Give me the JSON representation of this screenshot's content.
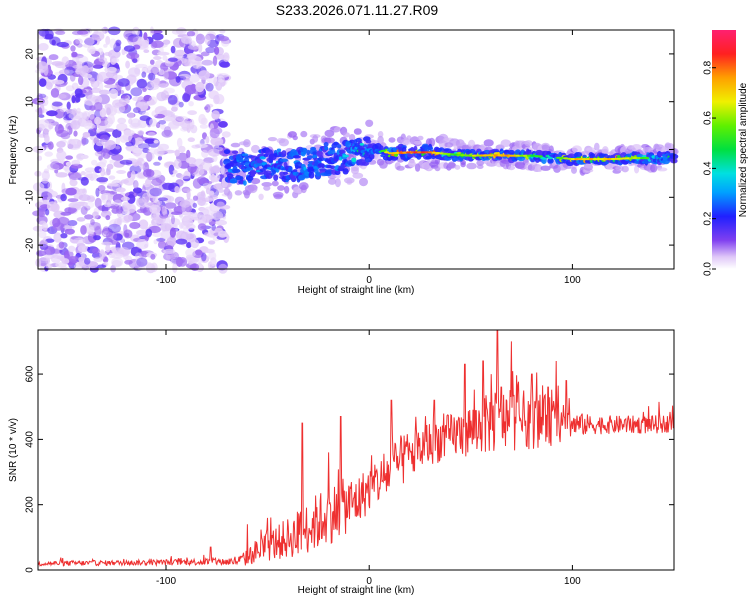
{
  "page": {
    "title": "S233.2026.071.11.27.R09"
  },
  "colors": {
    "snr_line": "#ee3030",
    "axis": "#000000",
    "background": "#ffffff"
  },
  "chart_data": [
    {
      "type": "heatmap",
      "name": "spectrogram",
      "title": "S233.2026.071.11.27.R09",
      "xlabel": "Height of straight line (km)",
      "ylabel": "Frequency (Hz)",
      "xlim": [
        -163,
        150
      ],
      "ylim": [
        -25,
        25
      ],
      "xticks": [
        -100,
        0,
        100
      ],
      "xtick_labels": [
        "-100",
        "0",
        "100"
      ],
      "yticks": [
        -20,
        -10,
        0,
        10,
        20
      ],
      "ytick_labels": [
        "-20",
        "-10",
        "0",
        "10",
        "20"
      ],
      "noise_region_x": [
        -163,
        -70
      ],
      "signal_trace": {
        "x": [
          -70,
          -60,
          -50,
          -40,
          -30,
          -20,
          -10,
          -5,
          0,
          5,
          10,
          20,
          30,
          40,
          50,
          60,
          70,
          80,
          90,
          100,
          110,
          120,
          130,
          140,
          150
        ],
        "y": [
          -3.5,
          -4,
          -3,
          -3.5,
          -3,
          -2,
          -1.5,
          0,
          -0.5,
          0,
          -0.8,
          -0.6,
          -0.6,
          -1,
          -1.3,
          -1.2,
          -1.3,
          -1.3,
          -1.6,
          -2,
          -2,
          -2,
          -1.8,
          -1.8,
          -1.8
        ],
        "peak_amplitude": [
          0.3,
          0.3,
          0.35,
          0.3,
          0.35,
          0.3,
          0.4,
          0.5,
          0.4,
          0.5,
          0.8,
          0.9,
          0.9,
          0.6,
          0.7,
          0.85,
          0.85,
          0.6,
          0.5,
          0.8,
          0.8,
          0.8,
          0.7,
          0.5,
          0.5
        ]
      },
      "colorbar": {
        "label": "Normalized spectral amplitude",
        "range": [
          0,
          0.95
        ],
        "ticks": [
          0.0,
          0.2,
          0.4,
          0.6,
          0.8
        ],
        "tick_labels": [
          "0.0",
          "0.2",
          "0.4",
          "0.6",
          "0.8"
        ]
      }
    },
    {
      "type": "line",
      "name": "snr",
      "xlabel": "Height of straight line (km)",
      "ylabel": "SNR (10 * v/v)",
      "xlim": [
        -163,
        150
      ],
      "ylim": [
        0,
        735
      ],
      "xticks": [
        -100,
        0,
        100
      ],
      "xtick_labels": [
        "-100",
        "0",
        "100"
      ],
      "yticks": [
        0,
        200,
        400,
        600
      ],
      "ytick_labels": [
        "0",
        "200",
        "400",
        "600"
      ],
      "envelope": {
        "x": [
          -163,
          -120,
          -80,
          -70,
          -62,
          -55,
          -45,
          -35,
          -25,
          -15,
          -5,
          0,
          5,
          10,
          15,
          20,
          25,
          30,
          40,
          50,
          60,
          70,
          80,
          90,
          95,
          100,
          110,
          120,
          130,
          140,
          150
        ],
        "y": [
          20,
          22,
          25,
          25,
          30,
          60,
          85,
          110,
          150,
          185,
          215,
          250,
          270,
          300,
          330,
          350,
          370,
          390,
          410,
          430,
          450,
          460,
          460,
          455,
          450,
          445,
          445,
          445,
          445,
          445,
          450
        ],
        "spread": [
          8,
          8,
          10,
          12,
          20,
          40,
          55,
          70,
          90,
          90,
          80,
          70,
          70,
          80,
          80,
          80,
          70,
          70,
          70,
          80,
          95,
          95,
          90,
          75,
          60,
          40,
          30,
          28,
          28,
          28,
          28
        ]
      },
      "peaks": {
        "x": [
          -78,
          -60,
          -33,
          -20,
          -14,
          11,
          32,
          47,
          56,
          60,
          63,
          65,
          70,
          80,
          88,
          92,
          97
        ],
        "y": [
          70,
          140,
          450,
          360,
          470,
          520,
          520,
          630,
          640,
          600,
          735,
          560,
          700,
          600,
          560,
          640,
          580
        ]
      }
    }
  ]
}
